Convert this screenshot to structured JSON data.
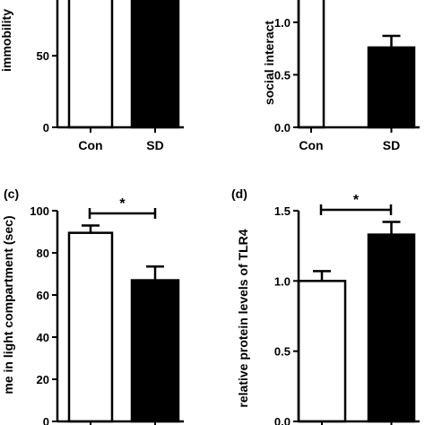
{
  "chart_data": [
    {
      "type": "bar",
      "panel_label": "",
      "ylabel": "immobility",
      "categories": [
        "Con",
        "SD"
      ],
      "values": [
        94,
        94
      ],
      "errors": [
        0,
        0
      ],
      "fills": [
        "#ffffff",
        "#000000"
      ],
      "ylim": [
        0,
        94
      ],
      "yticks": [
        0,
        50
      ],
      "significance": null
    },
    {
      "type": "bar",
      "panel_label": "",
      "ylabel": "social interact",
      "categories": [
        "Con",
        "SD"
      ],
      "values": [
        1.28,
        0.76
      ],
      "errors": [
        0,
        0.11
      ],
      "fills": [
        "#ffffff",
        "#000000"
      ],
      "ylim": [
        0,
        1.28
      ],
      "yticks": [
        0.0,
        0.5,
        1.0
      ],
      "significance": null
    },
    {
      "type": "bar",
      "panel_label": "(c)",
      "ylabel": "me in light compartment (sec)",
      "categories": [
        "",
        ""
      ],
      "values": [
        89.5,
        67
      ],
      "errors": [
        3.5,
        6.5
      ],
      "fills": [
        "#ffffff",
        "#000000"
      ],
      "ylim": [
        0,
        100
      ],
      "yticks": [
        0,
        20,
        40,
        60,
        80,
        100
      ],
      "significance": "*"
    },
    {
      "type": "bar",
      "panel_label": "(d)",
      "ylabel": "relative protein levels of TLR4",
      "categories": [
        "",
        ""
      ],
      "values": [
        1.0,
        1.33
      ],
      "errors": [
        0.07,
        0.09
      ],
      "fills": [
        "#ffffff",
        "#000000"
      ],
      "ylim": [
        0,
        1.5
      ],
      "yticks": [
        0.0,
        0.5,
        1.0,
        1.5
      ],
      "significance": "*"
    }
  ]
}
